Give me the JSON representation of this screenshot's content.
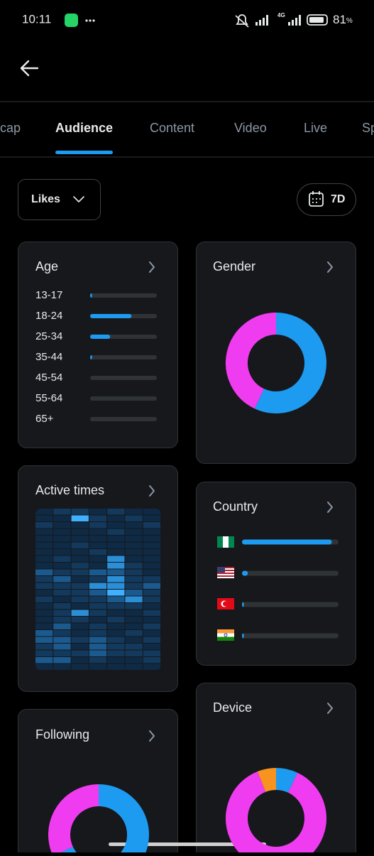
{
  "status_bar": {
    "time": "10:11",
    "network": "4G",
    "battery": "81",
    "battery_unit": "%"
  },
  "tabs": {
    "items": [
      "cap",
      "Audience",
      "Content",
      "Video",
      "Live",
      "Sp"
    ],
    "active": 1
  },
  "filter": {
    "metric": "Likes",
    "period": "7D"
  },
  "age": {
    "title": "Age",
    "categories": [
      "13-17",
      "18-24",
      "25-34",
      "35-44",
      "45-54",
      "55-64",
      "65+"
    ],
    "values": [
      3,
      62,
      30,
      3,
      0,
      0,
      0
    ],
    "xlim": [
      0,
      100
    ],
    "color": "#1d9bf0"
  },
  "gender": {
    "title": "Gender",
    "series": [
      {
        "color": "#1d9bf0",
        "value": 57
      },
      {
        "color": "#f03cf0",
        "value": 43
      }
    ]
  },
  "active_times": {
    "title": "Active times",
    "colors": [
      "#0f2a45",
      "#13395c",
      "#1b5a8f",
      "#2a8fd6",
      "#3fb0ff"
    ],
    "cells": [
      [
        0,
        1,
        1,
        0,
        1,
        0,
        0
      ],
      [
        0,
        0,
        4,
        1,
        0,
        1,
        0
      ],
      [
        1,
        0,
        0,
        1,
        0,
        0,
        1
      ],
      [
        0,
        0,
        0,
        0,
        1,
        0,
        0
      ],
      [
        0,
        0,
        0,
        0,
        0,
        0,
        0
      ],
      [
        0,
        0,
        1,
        0,
        0,
        0,
        0
      ],
      [
        0,
        0,
        0,
        1,
        0,
        0,
        0
      ],
      [
        0,
        1,
        0,
        0,
        3,
        0,
        0
      ],
      [
        0,
        0,
        1,
        0,
        3,
        1,
        0
      ],
      [
        2,
        1,
        1,
        2,
        2,
        1,
        0
      ],
      [
        1,
        2,
        0,
        1,
        3,
        1,
        1
      ],
      [
        1,
        1,
        1,
        3,
        3,
        1,
        2
      ],
      [
        0,
        1,
        1,
        2,
        4,
        2,
        1
      ],
      [
        1,
        0,
        1,
        1,
        2,
        3,
        1
      ],
      [
        0,
        1,
        0,
        1,
        1,
        1,
        0
      ],
      [
        0,
        1,
        3,
        1,
        0,
        0,
        1
      ],
      [
        0,
        1,
        1,
        0,
        1,
        0,
        0
      ],
      [
        0,
        2,
        0,
        1,
        0,
        0,
        1
      ],
      [
        2,
        1,
        0,
        1,
        0,
        1,
        0
      ],
      [
        2,
        2,
        1,
        2,
        1,
        0,
        1
      ],
      [
        1,
        2,
        0,
        2,
        1,
        1,
        0
      ],
      [
        1,
        1,
        1,
        2,
        1,
        1,
        1
      ],
      [
        2,
        2,
        0,
        1,
        0,
        0,
        1
      ],
      [
        0,
        0,
        0,
        0,
        0,
        0,
        0
      ]
    ]
  },
  "country": {
    "title": "Country",
    "values": [
      93,
      6,
      2,
      2
    ],
    "xlim": [
      0,
      100
    ],
    "color": "#1d9bf0"
  },
  "following": {
    "title": "Following",
    "series": [
      {
        "color": "#1d9bf0",
        "value": 68
      },
      {
        "color": "#f03cf0",
        "value": 32
      }
    ]
  },
  "device": {
    "title": "Device",
    "series": [
      {
        "color": "#1d9bf0",
        "value": 7
      },
      {
        "color": "#f03cf0",
        "value": 87
      },
      {
        "color": "#f7931e",
        "value": 6
      }
    ]
  }
}
